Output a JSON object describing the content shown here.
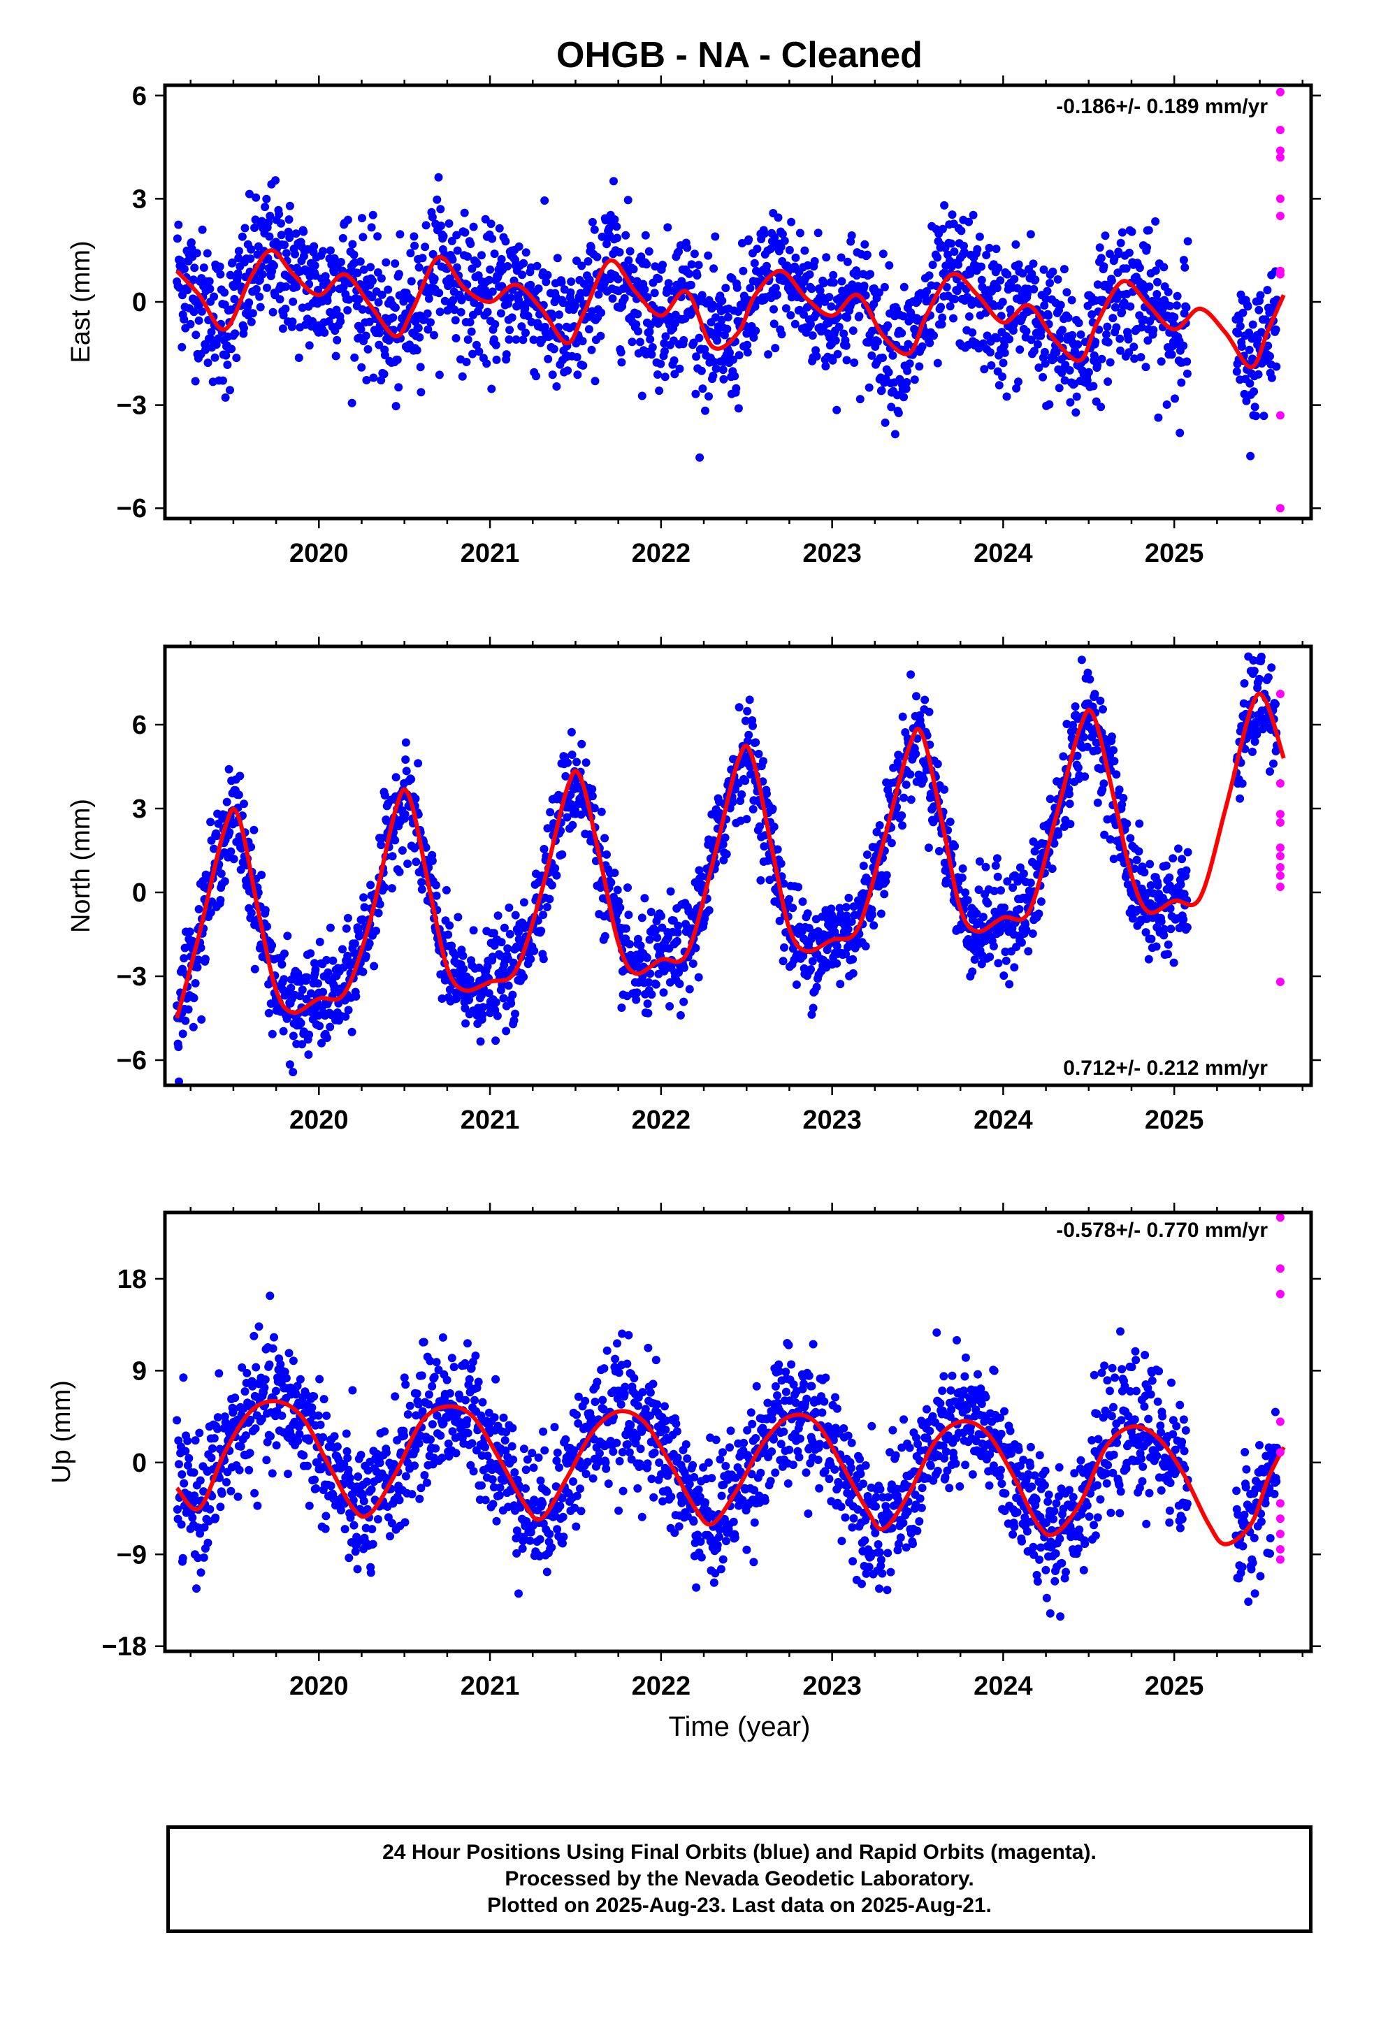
{
  "title": "OHGB  - NA - Cleaned",
  "colors": {
    "final": "#0000ff",
    "rapid": "#ff00ff",
    "model": "#ff0000"
  },
  "footer": {
    "line1": "24 Hour Positions Using Final Orbits (blue) and Rapid Orbits (magenta).",
    "line2": "Processed by the Nevada Geodetic Laboratory.",
    "line3": "Plotted on 2025-Aug-23. Last data on 2025-Aug-21."
  },
  "chart_data": [
    {
      "type": "scatter",
      "id": "east",
      "ylabel": "East (mm)",
      "xlabel": "",
      "rate_label": "-0.186+/- 0.189 mm/yr",
      "rate_position": "top-right",
      "xlim": [
        2019.1,
        2025.8
      ],
      "ylim": [
        -6.3,
        6.3
      ],
      "yticks": [
        -6,
        -3,
        0,
        3,
        6
      ],
      "ytick_labels": [
        "−6",
        "−3",
        "0",
        "3",
        "6"
      ],
      "xticks": [
        2020,
        2021,
        2022,
        2023,
        2024,
        2025
      ],
      "xtick_labels": [
        "2020",
        "2021",
        "2022",
        "2023",
        "2024",
        "2025"
      ],
      "model": {
        "x": [
          2019.17,
          2019.3,
          2019.45,
          2019.6,
          2019.72,
          2019.85,
          2020.0,
          2020.15,
          2020.3,
          2020.45,
          2020.55,
          2020.7,
          2020.85,
          2021.0,
          2021.15,
          2021.3,
          2021.45,
          2021.55,
          2021.7,
          2021.85,
          2022.0,
          2022.15,
          2022.3,
          2022.45,
          2022.55,
          2022.7,
          2022.85,
          2023.0,
          2023.15,
          2023.3,
          2023.45,
          2023.55,
          2023.7,
          2023.85,
          2024.0,
          2024.15,
          2024.3,
          2024.45,
          2024.55,
          2024.7,
          2024.85,
          2025.0,
          2025.15,
          2025.3,
          2025.45,
          2025.55,
          2025.64
        ],
        "y": [
          0.9,
          0.2,
          -0.8,
          0.7,
          1.5,
          0.8,
          0.2,
          0.8,
          -0.1,
          -1.0,
          -0.2,
          1.3,
          0.4,
          0.0,
          0.5,
          -0.2,
          -1.2,
          -0.3,
          1.2,
          0.3,
          -0.4,
          0.3,
          -1.3,
          -0.9,
          0.2,
          0.9,
          0.1,
          -0.4,
          0.2,
          -1.0,
          -1.5,
          -0.4,
          0.8,
          0.2,
          -0.6,
          -0.1,
          -1.1,
          -1.7,
          -0.6,
          0.6,
          -0.1,
          -0.8,
          -0.2,
          -0.9,
          -1.9,
          -0.8,
          0.2
        ]
      },
      "final_count": 2200,
      "final_spread_mm": 1.0,
      "final_x_range": [
        2019.17,
        2025.6
      ],
      "rapid": {
        "x": [
          2025.62,
          2025.62,
          2025.62,
          2025.62,
          2025.62,
          2025.62,
          2025.62,
          2025.62,
          2025.62,
          2025.62
        ],
        "y": [
          6.1,
          5.0,
          4.4,
          4.2,
          3.0,
          2.5,
          0.9,
          0.8,
          -3.3,
          -6.0
        ]
      }
    },
    {
      "type": "scatter",
      "id": "north",
      "ylabel": "North (mm)",
      "xlabel": "",
      "rate_label": "0.712+/- 0.212 mm/yr",
      "rate_position": "bottom-right",
      "xlim": [
        2019.1,
        2025.8
      ],
      "ylim": [
        -6.9,
        8.8
      ],
      "yticks": [
        -6,
        -3,
        0,
        3,
        6
      ],
      "ytick_labels": [
        "−6",
        "−3",
        "0",
        "3",
        "6"
      ],
      "xticks": [
        2020,
        2021,
        2022,
        2023,
        2024,
        2025
      ],
      "xtick_labels": [
        "2020",
        "2021",
        "2022",
        "2023",
        "2024",
        "2025"
      ],
      "model": {
        "x": [
          2019.17,
          2019.3,
          2019.45,
          2019.53,
          2019.65,
          2019.75,
          2019.85,
          2020.0,
          2020.15,
          2020.3,
          2020.45,
          2020.53,
          2020.65,
          2020.75,
          2020.85,
          2021.0,
          2021.15,
          2021.3,
          2021.45,
          2021.53,
          2021.65,
          2021.75,
          2021.85,
          2022.0,
          2022.15,
          2022.3,
          2022.45,
          2022.53,
          2022.65,
          2022.75,
          2022.85,
          2023.0,
          2023.15,
          2023.3,
          2023.45,
          2023.53,
          2023.65,
          2023.75,
          2023.85,
          2024.0,
          2024.15,
          2024.3,
          2024.45,
          2024.53,
          2024.65,
          2024.75,
          2024.85,
          2025.0,
          2025.15,
          2025.3,
          2025.45,
          2025.53,
          2025.64
        ],
        "y": [
          -4.5,
          -1.5,
          2.3,
          2.7,
          -0.8,
          -3.5,
          -4.3,
          -3.8,
          -3.6,
          -1.0,
          3.0,
          3.4,
          0.0,
          -2.7,
          -3.5,
          -3.2,
          -2.8,
          0.0,
          3.7,
          4.1,
          1.0,
          -1.8,
          -2.9,
          -2.4,
          -2.2,
          1.0,
          4.7,
          4.9,
          1.5,
          -1.3,
          -2.1,
          -1.7,
          -1.3,
          1.8,
          5.2,
          5.6,
          2.3,
          -0.6,
          -1.4,
          -0.9,
          -0.7,
          2.5,
          5.9,
          6.3,
          3.3,
          0.6,
          -0.7,
          -0.3,
          -0.2,
          3.0,
          6.6,
          6.9,
          4.8
        ]
      },
      "final_count": 2200,
      "final_spread_mm": 0.9,
      "final_x_range": [
        2019.17,
        2025.6
      ],
      "rapid": {
        "x": [
          2025.62,
          2025.62,
          2025.62,
          2025.62,
          2025.62,
          2025.62,
          2025.62,
          2025.62,
          2025.62,
          2025.62
        ],
        "y": [
          7.1,
          3.9,
          2.8,
          2.5,
          1.6,
          1.3,
          0.9,
          0.6,
          0.2,
          -3.2
        ]
      }
    },
    {
      "type": "scatter",
      "id": "up",
      "ylabel": "Up (mm)",
      "xlabel": "Time (year)",
      "rate_label": "-0.578+/- 0.770 mm/yr",
      "rate_position": "top-right",
      "xlim": [
        2019.1,
        2025.8
      ],
      "ylim": [
        -18.5,
        24.5
      ],
      "yticks": [
        -18,
        -9,
        0,
        9,
        18
      ],
      "ytick_labels": [
        "−18",
        "−9",
        "0",
        "9",
        "18"
      ],
      "xticks": [
        2020,
        2021,
        2022,
        2023,
        2024,
        2025
      ],
      "xtick_labels": [
        "2020",
        "2021",
        "2022",
        "2023",
        "2024",
        "2025"
      ],
      "model": {
        "x": [
          2019.17,
          2019.3,
          2019.45,
          2019.6,
          2019.75,
          2019.9,
          2020.05,
          2020.2,
          2020.3,
          2020.45,
          2020.6,
          2020.75,
          2020.9,
          2021.05,
          2021.2,
          2021.3,
          2021.45,
          2021.6,
          2021.75,
          2021.9,
          2022.05,
          2022.2,
          2022.3,
          2022.45,
          2022.6,
          2022.75,
          2022.9,
          2023.05,
          2023.2,
          2023.3,
          2023.45,
          2023.6,
          2023.75,
          2023.9,
          2024.05,
          2024.2,
          2024.3,
          2024.45,
          2024.6,
          2024.75,
          2024.9,
          2025.05,
          2025.2,
          2025.3,
          2025.45,
          2025.55,
          2025.64
        ],
        "y": [
          -2.5,
          -4.5,
          1.0,
          5.0,
          6.0,
          4.5,
          0.0,
          -4.5,
          -5.0,
          -1.0,
          4.0,
          5.5,
          4.5,
          0.5,
          -4.0,
          -5.5,
          -1.5,
          3.0,
          5.0,
          4.0,
          0.0,
          -4.5,
          -6.0,
          -2.5,
          2.0,
          4.5,
          4.0,
          0.0,
          -4.5,
          -6.5,
          -3.0,
          2.0,
          4.0,
          3.0,
          -1.0,
          -6.0,
          -7.0,
          -4.0,
          1.5,
          3.5,
          2.5,
          -1.0,
          -6.0,
          -8.0,
          -6.0,
          -1.5,
          1.5
        ]
      },
      "final_count": 2200,
      "final_spread_mm": 3.2,
      "final_x_range": [
        2019.17,
        2025.6
      ],
      "rapid": {
        "x": [
          2025.62,
          2025.62,
          2025.62,
          2025.62,
          2025.62,
          2025.62,
          2025.62,
          2025.62,
          2025.62,
          2025.62
        ],
        "y": [
          24.0,
          19.0,
          16.5,
          4.0,
          1.0,
          -4.0,
          -5.5,
          -7.0,
          -8.5,
          -9.5
        ]
      }
    }
  ]
}
